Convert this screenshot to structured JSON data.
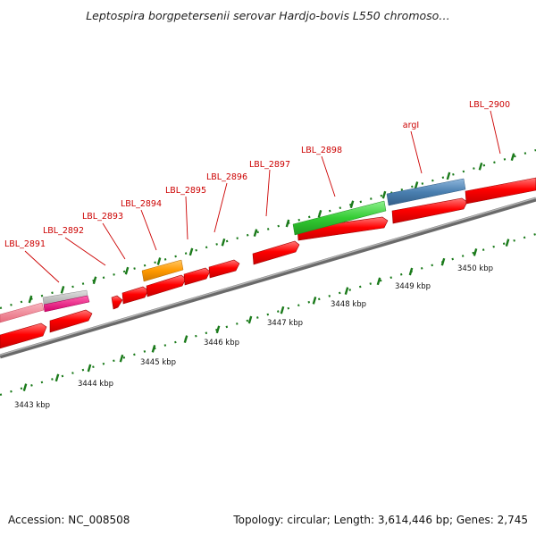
{
  "title": "Leptospira borgpetersenii serovar Hardjo-bovis L550 chromoso…",
  "footer": {
    "accession": "Accession: NC_008508",
    "summary": "Topology: circular; Length: 3,614,446 bp; Genes: 2,745"
  },
  "colors": {
    "forward_cds": "#ff0000",
    "backbone": "#888888",
    "label": "#cc0000",
    "tick": "#1a7a1a",
    "gene_pink": "#f08090",
    "gene_grey": "#bbbbbb",
    "gene_magenta": "#ee1177",
    "gene_orange": "#ff9900",
    "gene_green": "#33cc33",
    "gene_blue": "#4a7fb0"
  },
  "kbp_labels": [
    "3443 kbp",
    "3444 kbp",
    "3445 kbp",
    "3446 kbp",
    "3447 kbp",
    "3448 kbp",
    "3449 kbp",
    "3450 kbp"
  ],
  "gene_labels": [
    "LBL_2891",
    "LBL_2892",
    "LBL_2893",
    "LBL_2894",
    "LBL_2895",
    "LBL_2896",
    "LBL_2897",
    "LBL_2898",
    "argI",
    "LBL_2900"
  ],
  "chart_data": {
    "type": "genome-map",
    "axis_unit": "kbp",
    "ticks": [
      3443,
      3444,
      3445,
      3446,
      3447,
      3448,
      3449,
      3450
    ],
    "genes": [
      {
        "label": "LBL_2891",
        "kbp": 3442.9
      },
      {
        "label": "LBL_2892",
        "kbp": 3443.2
      },
      {
        "label": "LBL_2893",
        "kbp": 3443.9
      },
      {
        "label": "LBL_2894",
        "kbp": 3444.4
      },
      {
        "label": "LBL_2895",
        "kbp": 3444.9
      },
      {
        "label": "LBL_2896",
        "kbp": 3445.3
      },
      {
        "label": "LBL_2897",
        "kbp": 3446.2
      },
      {
        "label": "LBL_2898",
        "kbp": 3447.2
      },
      {
        "label": "argI",
        "kbp": 3448.6
      },
      {
        "label": "LBL_2900",
        "kbp": 3449.7
      }
    ]
  }
}
